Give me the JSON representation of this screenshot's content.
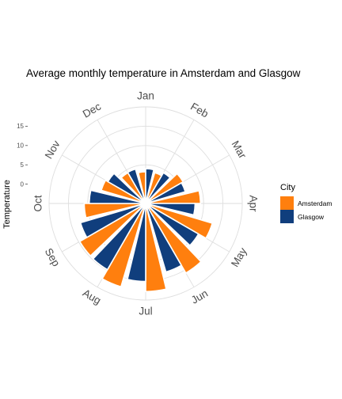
{
  "chart_data": {
    "type": "bar",
    "coord": "polar",
    "title": "Average monthly temperature in Amsterdam and Glasgow",
    "xlabel": "",
    "ylabel": "Temperature",
    "categories": [
      "Jan",
      "Feb",
      "Mar",
      "Apr",
      "May",
      "Jun",
      "Jul",
      "Aug",
      "Sep",
      "Oct",
      "Nov",
      "Dec"
    ],
    "ylim": [
      -5,
      20
    ],
    "yticks": [
      0,
      5,
      10,
      15
    ],
    "ytick_labels": [
      "0",
      "5",
      "10",
      "15"
    ],
    "grid": true,
    "legend": {
      "title": "City",
      "position": "right"
    },
    "series": [
      {
        "name": "Amsterdam",
        "color": "#FF7F0E",
        "values": [
          3.2,
          3.3,
          6.2,
          9.2,
          13.0,
          15.8,
          17.8,
          17.5,
          14.7,
          10.9,
          7.0,
          4.2
        ]
      },
      {
        "name": "Glasgow",
        "color": "#103E7D",
        "values": [
          4.0,
          4.2,
          5.7,
          7.8,
          10.8,
          13.5,
          15.2,
          14.8,
          12.6,
          9.6,
          6.3,
          4.3
        ]
      }
    ]
  }
}
